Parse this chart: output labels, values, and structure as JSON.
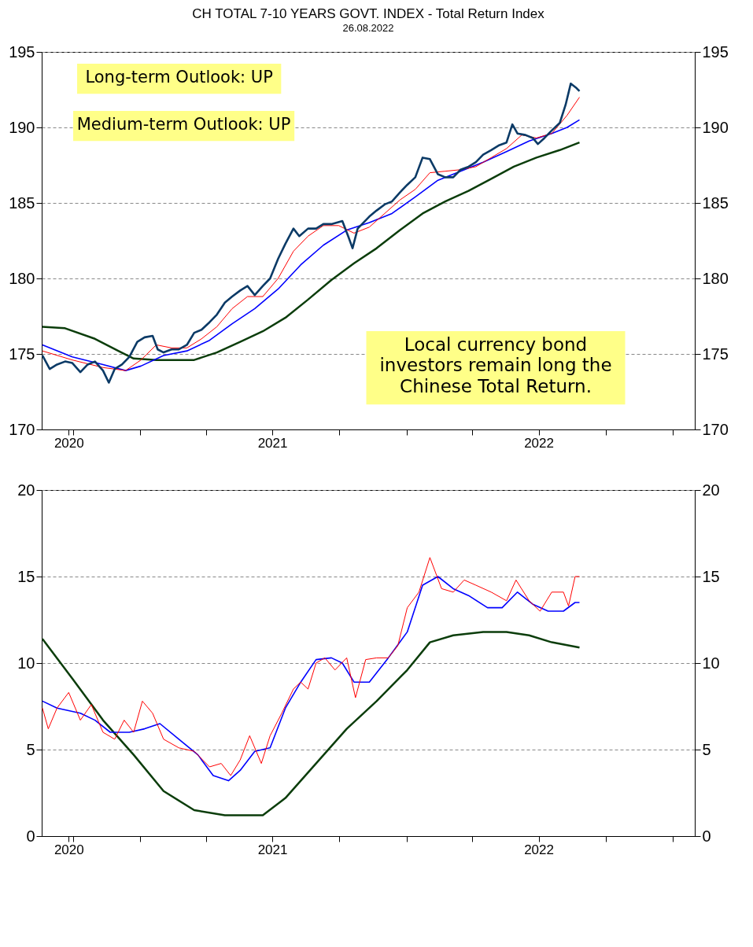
{
  "chart_data": [
    {
      "type": "line",
      "title": "CH TOTAL 7-10 YEARS GOVT. INDEX - Total Return Index",
      "subtitle": "26.08.2022",
      "annotations": [
        "Long-term Outlook: UP",
        "Medium-term Outlook: UP",
        "Local currency bond investors remain long the Chinese Total Return."
      ],
      "xlim": [
        "2020-08-19",
        "2023-01-31"
      ],
      "xticks": [
        {
          "value": "2020-09-25",
          "label": "2020"
        },
        {
          "value": "2020-10-01",
          "label": null
        },
        {
          "value": "2021-01-01",
          "label": null
        },
        {
          "value": "2021-04-01",
          "label": null
        },
        {
          "value": "2021-07-01",
          "label": "2021"
        },
        {
          "value": "2021-10-01",
          "label": null
        },
        {
          "value": "2022-01-01",
          "label": null
        },
        {
          "value": "2022-04-01",
          "label": null
        },
        {
          "value": "2022-07-01",
          "label": "2022"
        },
        {
          "value": "2022-10-01",
          "label": null
        },
        {
          "value": "2023-01-01",
          "label": null
        }
      ],
      "ylim": [
        170,
        195
      ],
      "yticks": [
        170,
        175,
        180,
        185,
        190,
        195
      ],
      "y2lim": [
        170,
        195
      ],
      "y2ticks": [
        170,
        175,
        180,
        185,
        190,
        195
      ],
      "grid": "y",
      "marker": "none",
      "line_style": "solid",
      "series": [
        {
          "color": "#0b3d0b",
          "x": [
            "2020-08-20",
            "2020-09-20",
            "2020-10-31",
            "2020-12-02",
            "2020-12-23",
            "2021-01-23",
            "2021-03-16",
            "2021-04-16",
            "2021-05-18",
            "2021-06-18",
            "2021-07-19",
            "2021-08-19",
            "2021-09-20",
            "2021-10-21",
            "2021-11-21",
            "2021-12-23",
            "2022-01-23",
            "2022-02-23",
            "2022-03-27",
            "2022-04-27",
            "2022-05-28",
            "2022-06-28",
            "2022-07-30",
            "2022-08-26"
          ],
          "values": [
            176.8,
            176.7,
            176.0,
            175.2,
            174.7,
            174.6,
            174.6,
            175.1,
            175.8,
            176.5,
            177.4,
            178.6,
            179.9,
            181.0,
            182.0,
            183.2,
            184.3,
            185.1,
            185.8,
            186.6,
            187.4,
            188.0,
            188.5,
            189.0
          ]
        },
        {
          "color": "#0000ff",
          "x": [
            "2020-08-20",
            "2020-09-30",
            "2020-11-11",
            "2020-12-12",
            "2021-01-02",
            "2021-02-02",
            "2021-03-06",
            "2021-04-06",
            "2021-05-07",
            "2021-06-07",
            "2021-07-09",
            "2021-08-09",
            "2021-09-09",
            "2021-10-11",
            "2021-11-11",
            "2021-12-12",
            "2022-01-13",
            "2022-02-13",
            "2022-03-16",
            "2022-04-16",
            "2022-05-18",
            "2022-06-18",
            "2022-07-19",
            "2022-08-09",
            "2022-08-26"
          ],
          "values": [
            175.6,
            174.8,
            174.3,
            173.9,
            174.2,
            174.9,
            175.2,
            175.9,
            177.0,
            178.0,
            179.3,
            180.9,
            182.2,
            183.2,
            183.7,
            184.3,
            185.4,
            186.5,
            187.1,
            187.7,
            188.4,
            189.1,
            189.6,
            190.0,
            190.5
          ]
        },
        {
          "color": "#ff0000",
          "x": [
            "2020-08-20",
            "2020-09-30",
            "2020-11-11",
            "2020-12-12",
            "2021-01-02",
            "2021-01-23",
            "2021-02-13",
            "2021-03-06",
            "2021-03-26",
            "2021-04-16",
            "2021-05-07",
            "2021-05-28",
            "2021-06-18",
            "2021-07-09",
            "2021-07-30",
            "2021-08-19",
            "2021-09-09",
            "2021-09-30",
            "2021-10-21",
            "2021-11-11",
            "2021-12-02",
            "2021-12-23",
            "2022-01-13",
            "2022-02-02",
            "2022-02-23",
            "2022-03-16",
            "2022-04-06",
            "2022-04-27",
            "2022-05-18",
            "2022-06-08",
            "2022-06-28",
            "2022-07-19",
            "2022-08-09",
            "2022-08-26"
          ],
          "values": [
            175.2,
            174.6,
            174.1,
            173.9,
            174.6,
            175.6,
            175.4,
            175.4,
            176.0,
            176.8,
            178.0,
            178.8,
            178.8,
            180.0,
            181.8,
            182.8,
            183.5,
            183.5,
            183.0,
            183.4,
            184.3,
            185.2,
            185.9,
            187.0,
            187.1,
            187.2,
            187.4,
            188.0,
            188.6,
            189.5,
            189.3,
            189.6,
            190.8,
            192.0
          ]
        },
        {
          "color": "#0b3a66",
          "x": [
            "2020-08-20",
            "2020-08-30",
            "2020-09-09",
            "2020-09-20",
            "2020-09-30",
            "2020-10-11",
            "2020-10-21",
            "2020-10-31",
            "2020-11-11",
            "2020-11-19",
            "2020-11-27",
            "2020-12-07",
            "2020-12-17",
            "2020-12-28",
            "2021-01-07",
            "2021-01-18",
            "2021-01-25",
            "2021-02-02",
            "2021-02-13",
            "2021-02-23",
            "2021-03-06",
            "2021-03-16",
            "2021-03-26",
            "2021-04-06",
            "2021-04-16",
            "2021-04-27",
            "2021-05-07",
            "2021-05-18",
            "2021-05-28",
            "2021-06-07",
            "2021-06-18",
            "2021-06-28",
            "2021-07-09",
            "2021-07-19",
            "2021-07-30",
            "2021-08-07",
            "2021-08-19",
            "2021-08-30",
            "2021-09-09",
            "2021-09-20",
            "2021-10-05",
            "2021-10-13",
            "2021-10-19",
            "2021-10-26",
            "2021-11-11",
            "2021-11-21",
            "2021-12-02",
            "2021-12-12",
            "2021-12-23",
            "2022-01-02",
            "2022-01-13",
            "2022-01-23",
            "2022-02-02",
            "2022-02-13",
            "2022-02-23",
            "2022-03-06",
            "2022-03-16",
            "2022-03-27",
            "2022-04-06",
            "2022-04-16",
            "2022-04-27",
            "2022-05-07",
            "2022-05-18",
            "2022-05-26",
            "2022-06-02",
            "2022-06-13",
            "2022-06-23",
            "2022-06-30",
            "2022-07-09",
            "2022-07-19",
            "2022-07-30",
            "2022-08-07",
            "2022-08-14",
            "2022-08-22",
            "2022-08-26"
          ],
          "values": [
            174.9,
            174.0,
            174.3,
            174.5,
            174.4,
            173.8,
            174.3,
            174.5,
            173.9,
            173.1,
            174.0,
            174.3,
            174.8,
            175.8,
            176.1,
            176.2,
            175.3,
            175.1,
            175.3,
            175.3,
            175.6,
            176.4,
            176.6,
            177.1,
            177.6,
            178.4,
            178.8,
            179.2,
            179.5,
            178.9,
            179.5,
            180.0,
            181.3,
            182.3,
            183.3,
            182.8,
            183.3,
            183.3,
            183.6,
            183.6,
            183.8,
            182.8,
            182.0,
            183.3,
            184.1,
            184.5,
            184.9,
            185.1,
            185.7,
            186.2,
            186.7,
            188.0,
            187.9,
            186.9,
            186.7,
            186.7,
            187.2,
            187.4,
            187.7,
            188.2,
            188.5,
            188.8,
            189.0,
            190.2,
            189.6,
            189.5,
            189.3,
            188.9,
            189.3,
            189.8,
            190.3,
            191.5,
            192.9,
            192.6,
            192.4
          ]
        }
      ]
    },
    {
      "type": "line",
      "xlim": [
        "2020-08-19",
        "2023-01-31"
      ],
      "xticks": [
        {
          "value": "2020-09-25",
          "label": "2020"
        },
        {
          "value": "2020-10-01",
          "label": null
        },
        {
          "value": "2021-01-01",
          "label": null
        },
        {
          "value": "2021-04-01",
          "label": null
        },
        {
          "value": "2021-07-01",
          "label": "2021"
        },
        {
          "value": "2021-10-01",
          "label": null
        },
        {
          "value": "2022-01-01",
          "label": null
        },
        {
          "value": "2022-04-01",
          "label": null
        },
        {
          "value": "2022-07-01",
          "label": "2022"
        },
        {
          "value": "2022-10-01",
          "label": null
        },
        {
          "value": "2023-01-01",
          "label": null
        }
      ],
      "ylim": [
        0,
        20
      ],
      "yticks": [
        0,
        5,
        10,
        15,
        20
      ],
      "y2lim": [
        0,
        20
      ],
      "y2ticks": [
        0,
        5,
        10,
        15,
        20
      ],
      "grid": "y",
      "marker": "none",
      "line_style": "solid",
      "series": [
        {
          "color": "#0b3d0b",
          "x": [
            "2020-08-20",
            "2020-09-30",
            "2020-11-11",
            "2020-12-23",
            "2021-02-02",
            "2021-03-16",
            "2021-04-27",
            "2021-06-18",
            "2021-07-19",
            "2021-08-30",
            "2021-10-11",
            "2021-11-21",
            "2022-01-02",
            "2022-02-02",
            "2022-03-06",
            "2022-04-16",
            "2022-05-18",
            "2022-06-18",
            "2022-07-19",
            "2022-08-26"
          ],
          "values": [
            11.4,
            9.1,
            6.7,
            4.7,
            2.6,
            1.5,
            1.2,
            1.2,
            2.2,
            4.2,
            6.2,
            7.8,
            9.6,
            11.2,
            11.6,
            11.8,
            11.8,
            11.6,
            11.2,
            10.9
          ]
        },
        {
          "color": "#0000ff",
          "x": [
            "2020-08-20",
            "2020-09-09",
            "2020-10-11",
            "2020-10-31",
            "2020-11-21",
            "2020-12-17",
            "2021-01-07",
            "2021-01-28",
            "2021-02-23",
            "2021-03-21",
            "2021-04-11",
            "2021-05-02",
            "2021-05-18",
            "2021-06-07",
            "2021-06-28",
            "2021-07-19",
            "2021-08-09",
            "2021-08-30",
            "2021-09-20",
            "2021-10-05",
            "2021-10-21",
            "2021-11-11",
            "2021-12-07",
            "2022-01-02",
            "2022-01-23",
            "2022-02-13",
            "2022-03-06",
            "2022-03-27",
            "2022-04-22",
            "2022-05-12",
            "2022-06-02",
            "2022-06-23",
            "2022-07-14",
            "2022-08-04",
            "2022-08-20",
            "2022-08-26"
          ],
          "values": [
            7.8,
            7.4,
            7.1,
            6.7,
            6.0,
            6.0,
            6.2,
            6.5,
            5.6,
            4.7,
            3.5,
            3.2,
            3.8,
            4.9,
            5.1,
            7.4,
            8.9,
            10.2,
            10.3,
            10.0,
            8.9,
            8.9,
            10.3,
            11.8,
            14.5,
            15.0,
            14.3,
            13.9,
            13.2,
            13.2,
            14.1,
            13.4,
            13.0,
            13.0,
            13.5,
            13.5
          ]
        },
        {
          "color": "#ff0000",
          "x": [
            "2020-08-20",
            "2020-08-28",
            "2020-09-09",
            "2020-09-25",
            "2020-10-11",
            "2020-10-26",
            "2020-11-11",
            "2020-11-27",
            "2020-12-10",
            "2020-12-23",
            "2021-01-04",
            "2021-01-18",
            "2021-02-02",
            "2021-02-23",
            "2021-03-16",
            "2021-04-06",
            "2021-04-22",
            "2021-05-05",
            "2021-05-18",
            "2021-05-31",
            "2021-06-16",
            "2021-06-28",
            "2021-07-14",
            "2021-07-30",
            "2021-08-09",
            "2021-08-19",
            "2021-08-30",
            "2021-09-11",
            "2021-09-25",
            "2021-10-11",
            "2021-10-23",
            "2021-11-06",
            "2021-11-21",
            "2021-12-07",
            "2021-12-20",
            "2022-01-02",
            "2022-01-18",
            "2022-02-02",
            "2022-02-18",
            "2022-03-06",
            "2022-03-21",
            "2022-04-06",
            "2022-04-27",
            "2022-05-18",
            "2022-05-31",
            "2022-06-18",
            "2022-07-03",
            "2022-07-19",
            "2022-08-04",
            "2022-08-11",
            "2022-08-20",
            "2022-08-26"
          ],
          "values": [
            7.4,
            6.2,
            7.4,
            8.3,
            6.7,
            7.6,
            6.0,
            5.6,
            6.7,
            6.0,
            7.8,
            7.1,
            5.6,
            5.1,
            4.9,
            4.0,
            4.2,
            3.5,
            4.4,
            5.8,
            4.2,
            5.8,
            7.1,
            8.5,
            8.9,
            8.5,
            10.0,
            10.3,
            9.6,
            10.3,
            8.0,
            10.2,
            10.3,
            10.3,
            11.0,
            13.2,
            14.1,
            16.1,
            14.3,
            14.1,
            14.8,
            14.5,
            14.1,
            13.6,
            14.8,
            13.6,
            13.0,
            14.1,
            14.1,
            13.3,
            15.0,
            15.0
          ]
        }
      ]
    }
  ]
}
